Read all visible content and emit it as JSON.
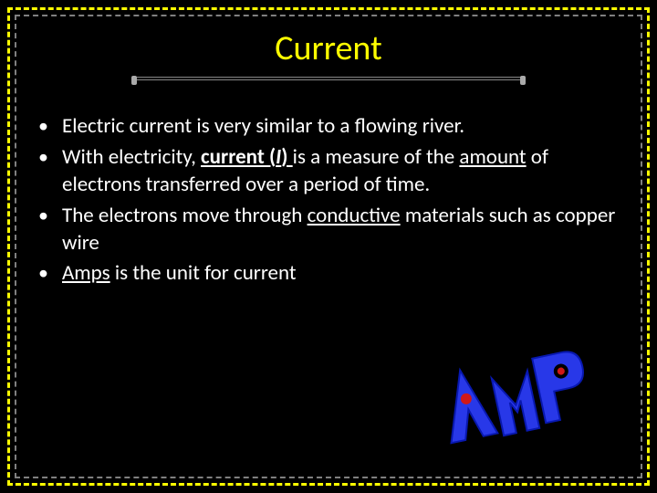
{
  "colors": {
    "background": "#000000",
    "outer_border": "#ffff00",
    "inner_border": "#808080",
    "title_color": "#ffff00",
    "text_color": "#ffffff",
    "amp_blue": "#2838e8",
    "amp_outline": "#0818b0",
    "amp_red_dot": "#d01818",
    "underline_gray": "#888888"
  },
  "title": "Current",
  "bullets": [
    {
      "segments": [
        {
          "text": "Electric current is very similar to a flowing river."
        }
      ]
    },
    {
      "segments": [
        {
          "text": "With electricity, "
        },
        {
          "text": "current (",
          "style": "u-bold"
        },
        {
          "text": "I",
          "style": "u-bold italic"
        },
        {
          "text": ") ",
          "style": "u-bold"
        },
        {
          "text": "is a measure of the "
        },
        {
          "text": "amount",
          "style": "u"
        },
        {
          "text": " of electrons transferred over a period of time."
        }
      ]
    },
    {
      "segments": [
        {
          "text": "The electrons move through "
        },
        {
          "text": "conductive",
          "style": "u"
        },
        {
          "text": " materials such as copper wire"
        }
      ]
    },
    {
      "segments": [
        {
          "text": "Amps",
          "style": "u"
        },
        {
          "text": " is the unit for current"
        }
      ]
    }
  ],
  "amp_graphic": {
    "label": "AMP",
    "rotation_deg": -12
  }
}
